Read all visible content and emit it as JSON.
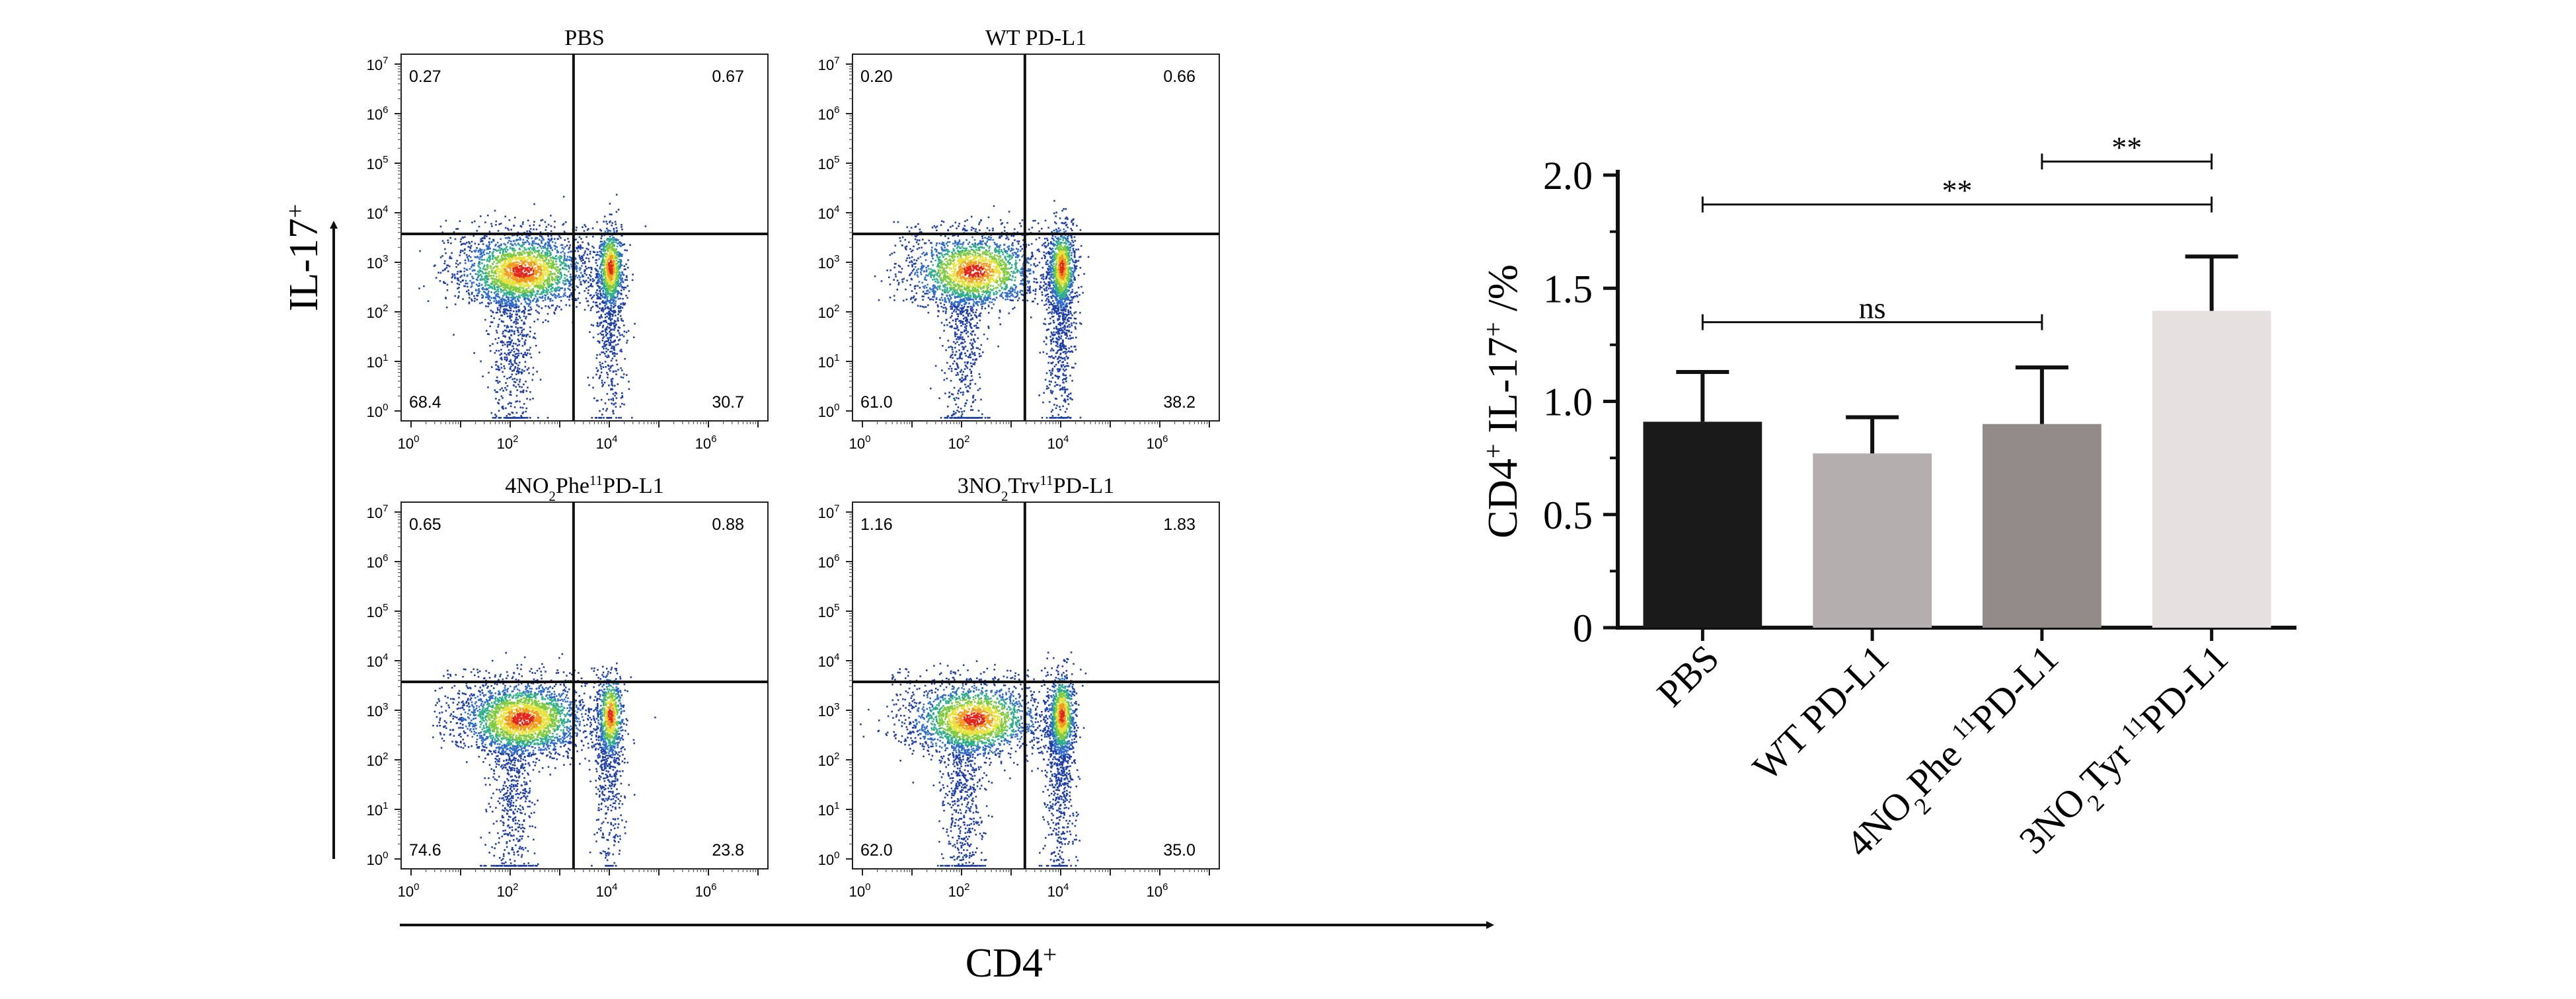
{
  "figure": {
    "facs": {
      "y_axis_label": "IL-17",
      "y_axis_label_sup": "+",
      "x_axis_label": "CD4",
      "x_axis_label_sup": "+",
      "tick_labels": [
        "10",
        "10",
        "10",
        "10",
        "10",
        "10",
        "10",
        "10"
      ],
      "tick_exponents": [
        "0",
        "1",
        "2",
        "3",
        "4",
        "5",
        "6",
        "7"
      ],
      "x_tick_exponents_shown": [
        "0",
        "2",
        "4",
        "6"
      ],
      "panels": [
        {
          "title_parts": [
            {
              "t": "PBS"
            }
          ],
          "quadrants": {
            "ul": "0.27",
            "ur": "0.67",
            "ll": "68.4",
            "lr": "30.7"
          }
        },
        {
          "title_parts": [
            {
              "t": "WT PD-L1"
            }
          ],
          "quadrants": {
            "ul": "0.20",
            "ur": "0.66",
            "ll": "61.0",
            "lr": "38.2"
          }
        },
        {
          "title_parts": [
            {
              "t": "4NO"
            },
            {
              "t": "2",
              "s": "sub"
            },
            {
              "t": "Phe"
            },
            {
              "t": "11",
              "s": "sup"
            },
            {
              "t": "PD-L1"
            }
          ],
          "quadrants": {
            "ul": "0.65",
            "ur": "0.88",
            "ll": "74.6",
            "lr": "23.8"
          }
        },
        {
          "title_parts": [
            {
              "t": "3NO"
            },
            {
              "t": "2",
              "s": "sub"
            },
            {
              "t": "Trv"
            },
            {
              "t": "11",
              "s": "sup"
            },
            {
              "t": "PD-L1"
            }
          ],
          "quadrants": {
            "ul": "1.16",
            "ur": "1.83",
            "ll": "62.0",
            "lr": "35.0"
          }
        }
      ]
    },
    "chart_data": {
      "type": "bar",
      "categories": [
        "PBS",
        "WT PD-L1",
        "4NO2Phe11PD-L1",
        "3NO2Tyr11PD-L1"
      ],
      "category_label_parts": [
        [
          {
            "t": "PBS"
          }
        ],
        [
          {
            "t": "WT PD-L1"
          }
        ],
        [
          {
            "t": "4NO"
          },
          {
            "t": "2",
            "s": "sub"
          },
          {
            "t": "Phe "
          },
          {
            "t": "11",
            "s": "sup"
          },
          {
            "t": "PD-L1"
          }
        ],
        [
          {
            "t": "3NO"
          },
          {
            "t": "2",
            "s": "sub"
          },
          {
            "t": "Tyr "
          },
          {
            "t": "11",
            "s": "sup"
          },
          {
            "t": "PD-L1"
          }
        ]
      ],
      "values": [
        0.91,
        0.77,
        0.9,
        1.4
      ],
      "errors": [
        0.22,
        0.16,
        0.25,
        0.24
      ],
      "colors": [
        "#1a1a1a",
        "#b5aeae",
        "#938b8a",
        "#e6e0e1"
      ],
      "ylim": [
        0,
        2.0
      ],
      "yticks": [
        0,
        0.5,
        1.0,
        1.5,
        2.0
      ],
      "ytick_labels": [
        "0",
        "0.5",
        "1.0",
        "1.5",
        "2.0"
      ],
      "ylabel_parts": [
        {
          "t": "CD4"
        },
        {
          "t": "+",
          "s": "sup"
        },
        {
          "t": " IL-17"
        },
        {
          "t": "+",
          "s": "sup"
        },
        {
          "t": " /%"
        }
      ],
      "xlabel": "",
      "title": "",
      "significance": [
        {
          "from": 0,
          "to": 2,
          "label": "ns"
        },
        {
          "from": 0,
          "to": 3,
          "label": "**"
        },
        {
          "from": 2,
          "to": 3,
          "label": "**"
        }
      ]
    }
  }
}
